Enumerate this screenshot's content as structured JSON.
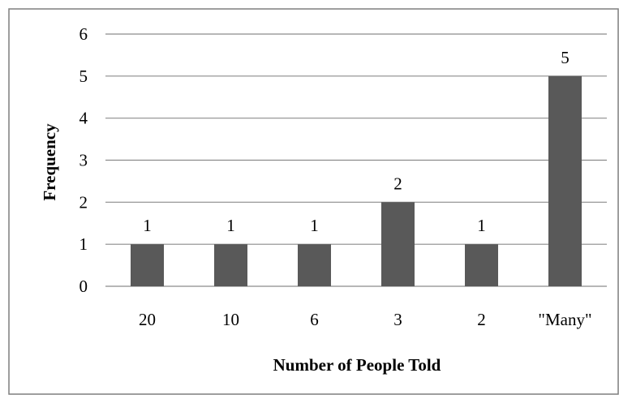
{
  "chart_data": {
    "type": "bar",
    "title": "",
    "xlabel": "Number of People Told",
    "ylabel": "Frequency",
    "categories": [
      "20",
      "10",
      "6",
      "3",
      "2",
      "\"Many\""
    ],
    "values": [
      1,
      1,
      1,
      2,
      1,
      5
    ],
    "data_labels": [
      "1",
      "1",
      "1",
      "2",
      "1",
      "5"
    ],
    "ylim": [
      0,
      6
    ],
    "yticks": [
      0,
      1,
      2,
      3,
      4,
      5,
      6
    ],
    "ytick_labels": [
      "0",
      "1",
      "2",
      "3",
      "4",
      "5",
      "6"
    ],
    "grid": true,
    "legend": "none",
    "bar_color": "#595959",
    "grid_color": "#8c8c8c"
  }
}
